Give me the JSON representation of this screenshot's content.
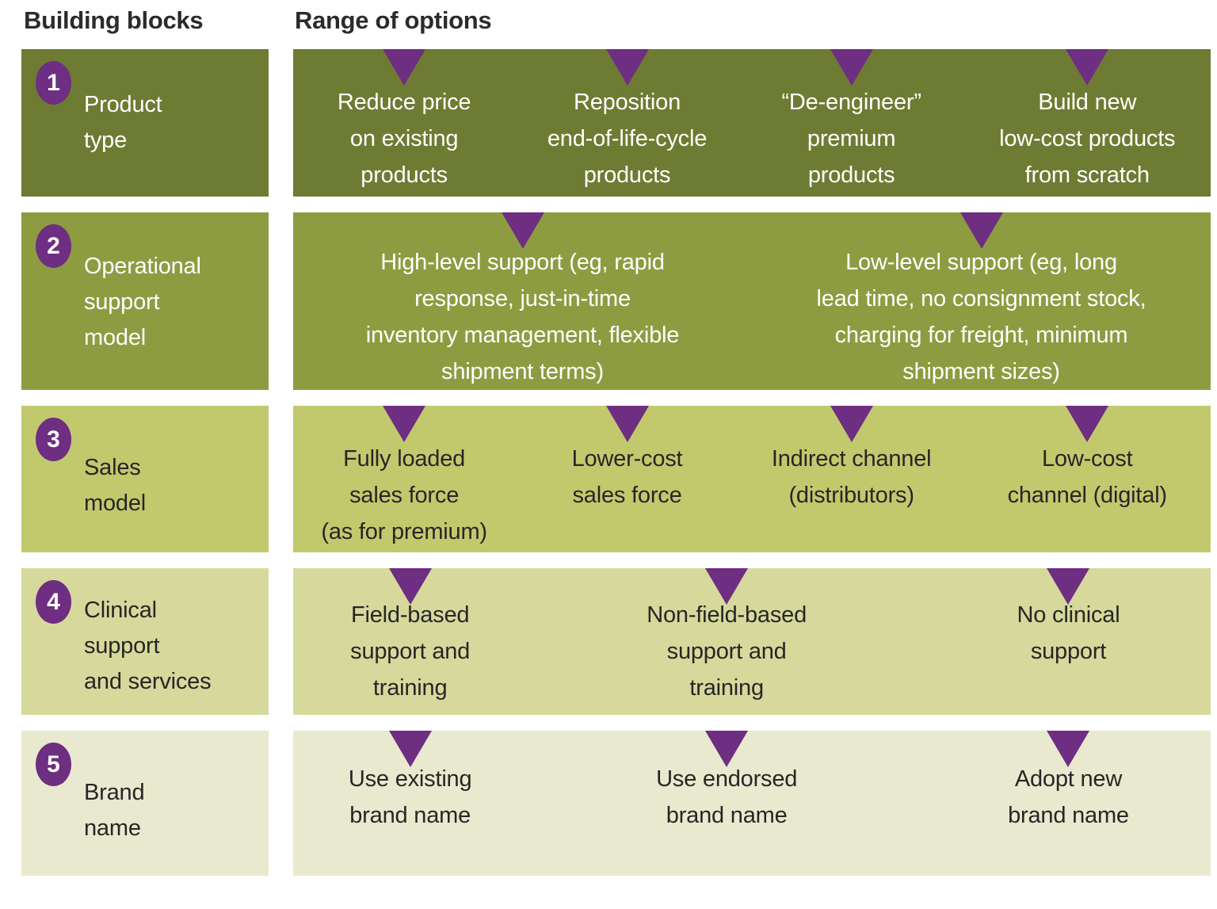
{
  "header": {
    "left": "Building blocks",
    "right": "Range of options"
  },
  "colors": {
    "row1_bg": "#6e7b33",
    "row2_bg": "#8d9c41",
    "row3_bg": "#c2c96d",
    "row4_bg": "#d6d99b",
    "row5_bg": "#e8e9ce",
    "accent_purple": "#6e2e81",
    "text_light": "#ffffff",
    "text_dark": "#262626"
  },
  "rows": [
    {
      "number": "1",
      "title": "Product\ntype",
      "options": [
        "Reduce price\non existing\nproducts",
        "Reposition\nend-of-life-cycle\nproducts",
        "“De-engineer”\npremium\nproducts",
        "Build new\nlow-cost products\nfrom scratch"
      ]
    },
    {
      "number": "2",
      "title": "Operational\nsupport\nmodel",
      "options": [
        "High-level support (eg, rapid\nresponse, just-in-time\ninventory management, flexible\nshipment terms)",
        "Low-level support (eg, long\nlead time, no consignment stock,\ncharging for freight, minimum\nshipment sizes)"
      ]
    },
    {
      "number": "3",
      "title": "Sales\nmodel",
      "options": [
        "Fully loaded\nsales force\n(as for premium)",
        "Lower-cost\nsales force",
        "Indirect channel\n(distributors)",
        "Low-cost\nchannel (digital)"
      ]
    },
    {
      "number": "4",
      "title": "Clinical\nsupport\nand services",
      "options": [
        "Field-based\nsupport and\ntraining",
        "Non-field-based\nsupport and\ntraining",
        "No clinical\nsupport"
      ]
    },
    {
      "number": "5",
      "title": "Brand\nname",
      "options": [
        "Use existing\nbrand name",
        "Use endorsed\nbrand name",
        "Adopt new\nbrand name"
      ]
    }
  ]
}
